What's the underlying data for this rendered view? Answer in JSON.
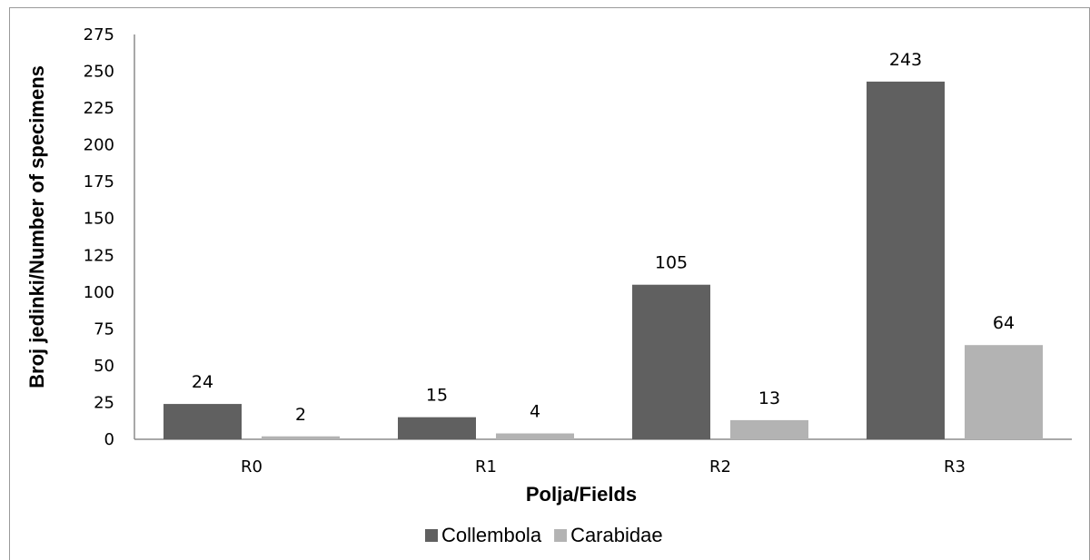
{
  "chart_data": {
    "type": "bar",
    "categories": [
      "R0",
      "R1",
      "R2",
      "R3"
    ],
    "series": [
      {
        "name": "Collembola",
        "values": [
          24,
          15,
          105,
          243
        ],
        "color": "#606060"
      },
      {
        "name": "Carabidae",
        "values": [
          2,
          4,
          13,
          64
        ],
        "color": "#b3b3b3"
      }
    ],
    "xlabel": "Polja/Fields",
    "ylabel": "Broj jedinki/Number of specimens",
    "ylim": [
      0,
      275
    ],
    "yticks": [
      0,
      25,
      50,
      75,
      100,
      125,
      150,
      175,
      200,
      225,
      250,
      275
    ],
    "grid": false,
    "legend_position": "bottom"
  }
}
